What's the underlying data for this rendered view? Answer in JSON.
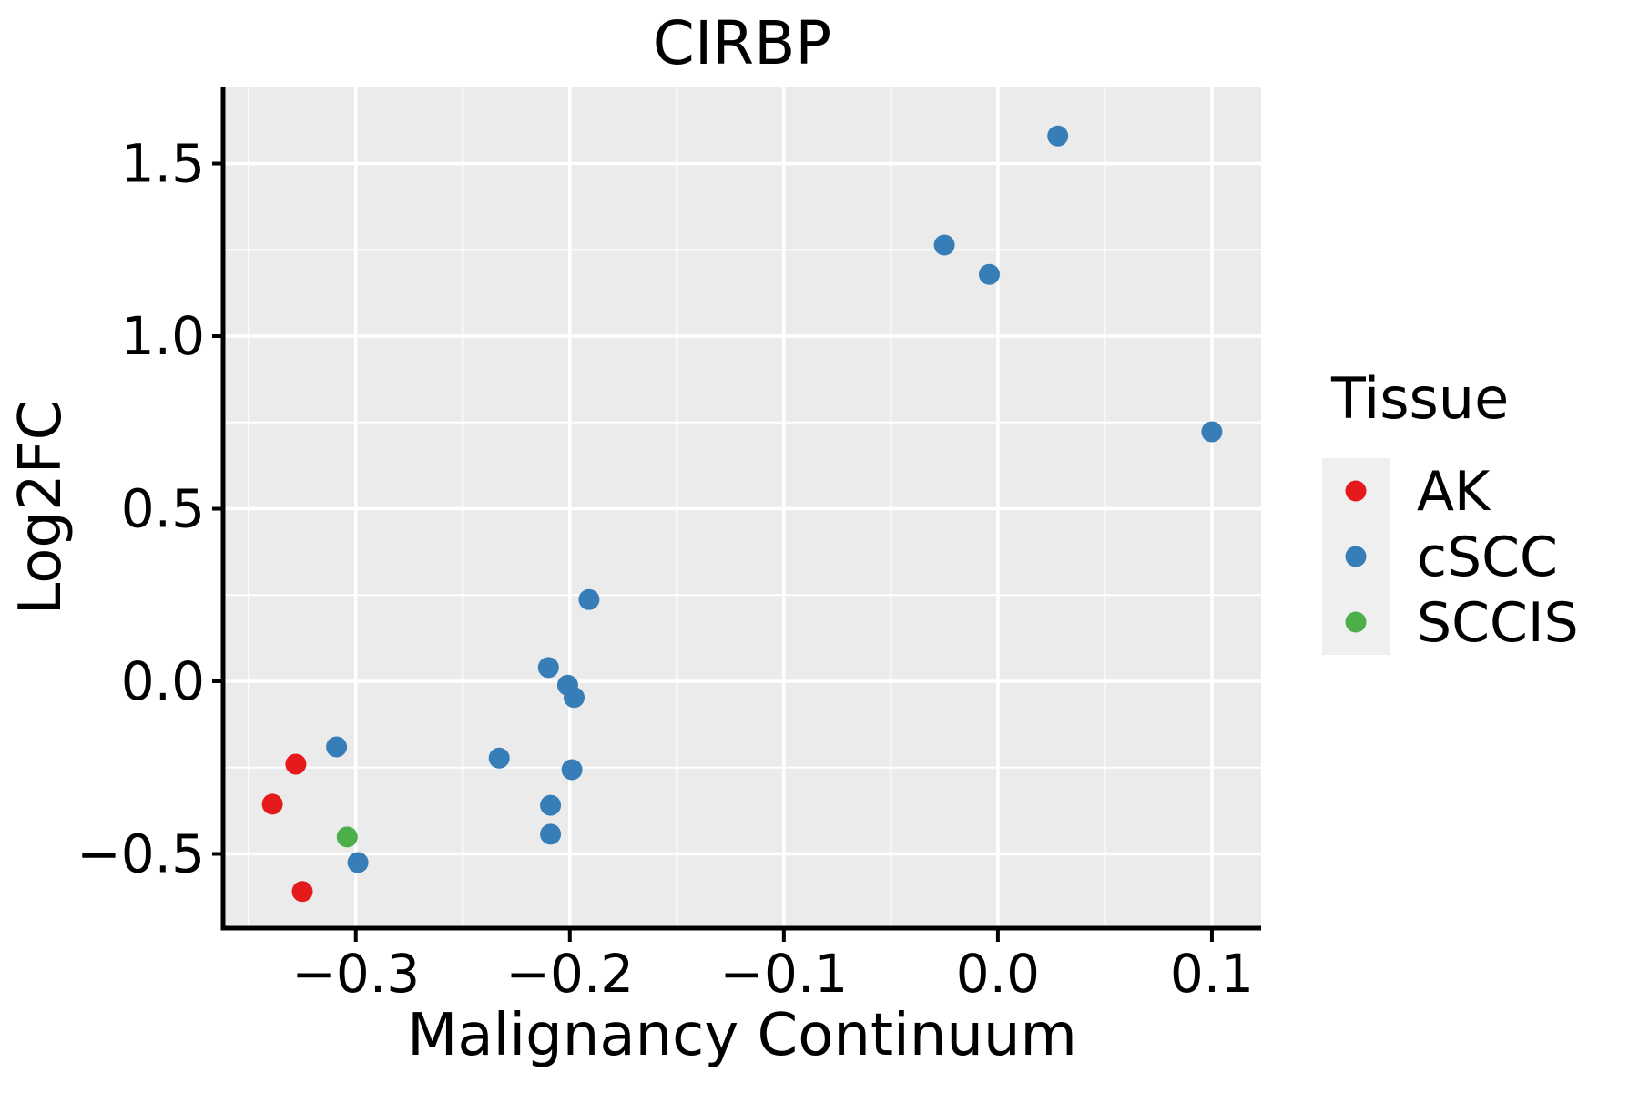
{
  "title": "CIRBP",
  "colors": {
    "ak_red": "#e41a1c",
    "cscc_blue": "#377eb8",
    "sccis_green": "#4daf4a",
    "panel_background": "#ebebeb",
    "gridline": "#ffffff",
    "axis_line": "#000000",
    "legend_key_background": "#efefef",
    "text": "#000000"
  },
  "legend": {
    "title": "Tissue",
    "entries": [
      {
        "label": "AK",
        "color": "#e41a1c"
      },
      {
        "label": "cSCC",
        "color": "#377eb8"
      },
      {
        "label": "SCCIS",
        "color": "#4daf4a"
      }
    ]
  },
  "chart_data": {
    "type": "scatter",
    "title": "CIRBP",
    "xlabel": "Malignancy Continuum",
    "ylabel": "Log2FC",
    "xlim": [
      -0.362,
      0.123
    ],
    "ylim": [
      -0.715,
      1.723
    ],
    "grid": true,
    "legend_position": "right",
    "x_major_ticks": [
      -0.3,
      -0.2,
      -0.1,
      0.0,
      0.1
    ],
    "x_tick_labels": [
      "−0.3",
      "−0.2",
      "−0.1",
      "0.0",
      "0.1"
    ],
    "x_minor_ticks": [
      -0.35,
      -0.25,
      -0.15,
      -0.05,
      0.05
    ],
    "y_major_ticks": [
      1.5,
      1.0,
      0.5,
      0.0,
      -0.5
    ],
    "y_tick_labels": [
      "1.5",
      "1.0",
      "0.5",
      "0.0",
      "−0.5"
    ],
    "y_minor_ticks": [
      1.25,
      0.75,
      0.25,
      -0.25
    ],
    "point_radius_px": 11.5,
    "series": [
      {
        "name": "AK",
        "color": "#e41a1c",
        "points": [
          [
            -0.328,
            -0.24
          ],
          [
            -0.339,
            -0.356
          ],
          [
            -0.325,
            -0.609
          ]
        ]
      },
      {
        "name": "cSCC",
        "color": "#377eb8",
        "points": [
          [
            0.028,
            1.58
          ],
          [
            -0.025,
            1.264
          ],
          [
            -0.004,
            1.179
          ],
          [
            0.1,
            0.723
          ],
          [
            -0.191,
            0.237
          ],
          [
            -0.21,
            0.04
          ],
          [
            -0.201,
            -0.011
          ],
          [
            -0.198,
            -0.047
          ],
          [
            -0.233,
            -0.222
          ],
          [
            -0.199,
            -0.256
          ],
          [
            -0.209,
            -0.359
          ],
          [
            -0.209,
            -0.443
          ],
          [
            -0.309,
            -0.19
          ],
          [
            -0.299,
            -0.525
          ]
        ]
      },
      {
        "name": "SCCIS",
        "color": "#4daf4a",
        "points": [
          [
            -0.304,
            -0.451
          ]
        ]
      }
    ]
  }
}
